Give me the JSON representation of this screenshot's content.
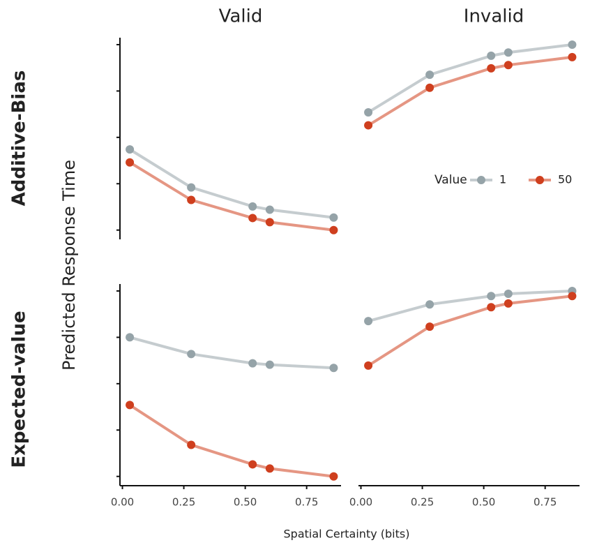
{
  "chart_data": {
    "type": "line",
    "columns": [
      "Valid",
      "Invalid"
    ],
    "rows": [
      "Additive-Bias",
      "Expected-value"
    ],
    "y_label": "Predicted Response Time",
    "x_label": "Spatial Certainty (bits)",
    "legend": {
      "title": "Value",
      "position": "right",
      "entries": [
        {
          "name": "1",
          "color": "#95a3a8"
        },
        {
          "name": "50",
          "color": "#cf3f1e"
        }
      ]
    },
    "x": [
      0.03,
      0.28,
      0.53,
      0.6,
      0.86
    ],
    "xlim": [
      -0.01,
      0.89
    ],
    "xticks": [
      {
        "value": 0,
        "label": "0.00"
      },
      {
        "value": 0.25,
        "label": "0.25"
      },
      {
        "value": 0.5,
        "label": "0.50"
      },
      {
        "value": 0.75,
        "label": "0.75"
      }
    ],
    "ylim": [
      -0.2,
      4.15
    ],
    "yticks": [
      0,
      1,
      2,
      3,
      4
    ],
    "panels": [
      [
        {
          "series": [
            [
              1.74,
              0.92,
              0.51,
              0.44,
              0.27
            ],
            [
              1.46,
              0.65,
              0.26,
              0.17,
              0
            ]
          ]
        },
        {
          "series": [
            [
              2.54,
              3.35,
              3.76,
              3.83,
              4.0
            ],
            [
              2.26,
              3.07,
              3.49,
              3.56,
              3.73
            ]
          ]
        }
      ],
      [
        {
          "series": [
            [
              3.0,
              2.64,
              2.44,
              2.41,
              2.34
            ],
            [
              1.54,
              0.68,
              0.26,
              0.17,
              0
            ]
          ]
        },
        {
          "series": [
            [
              3.35,
              3.71,
              3.89,
              3.94,
              4.0
            ],
            [
              2.39,
              3.23,
              3.65,
              3.73,
              3.89
            ]
          ]
        }
      ]
    ]
  }
}
